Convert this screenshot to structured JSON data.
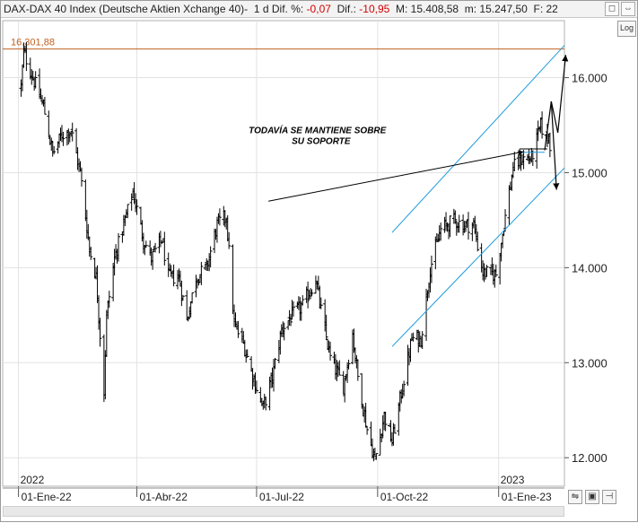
{
  "header": {
    "symbol": "DAX",
    "sep1": " - ",
    "name": "DAX 40 Index (Deutsche Aktien Xchange 40)",
    "sep2": " - ",
    "timeframe": "1 d",
    "dif_pct_label": "Dif. %:",
    "dif_pct_value": "-0,07",
    "dif_label": "Dif.:",
    "dif_value": "-10,95",
    "max_label": "M:",
    "max_value": "15.408,58",
    "min_label": "m:",
    "min_value": "15.247,50",
    "f_label": "F:",
    "f_value": "22",
    "controls": [
      "◻",
      "⇔"
    ]
  },
  "log_button": "Log",
  "bottom_controls": [
    "⇋",
    "▣",
    "⊣"
  ],
  "chart_data": {
    "type": "ohlc",
    "title": "",
    "colors": {
      "bars": "#000000",
      "resistance": "#c06020",
      "channel": "#1e9bdc",
      "annotation": "#000000",
      "grid": "#e2e2e2"
    },
    "y_axis": {
      "ticks": [
        "12.000",
        "13.000",
        "14.000",
        "15.000",
        "16.000"
      ],
      "range": [
        11700,
        16600
      ],
      "scale": "linear"
    },
    "x_axis": {
      "range": [
        "2021-12-20",
        "2023-02-20"
      ],
      "ticks": [
        {
          "date": "2022-01-01",
          "label": "01-Ene-22"
        },
        {
          "date": "2022-04-01",
          "label": "01-Abr-22"
        },
        {
          "date": "2022-07-01",
          "label": "01-Jul-22"
        },
        {
          "date": "2022-10-01",
          "label": "01-Oct-22"
        },
        {
          "date": "2023-01-01",
          "label": "01-Ene-23"
        }
      ],
      "year_labels": [
        {
          "date": "2022-01-01",
          "label": "2022"
        },
        {
          "date": "2023-01-01",
          "label": "2023"
        }
      ]
    },
    "resistance": {
      "value": 16301.88,
      "label": "16.301,88"
    },
    "annotation": {
      "lines": [
        "TODAVÍA SE MANTIENE SOBRE",
        "SU SOPORTE"
      ]
    },
    "channel": {
      "upper": [
        {
          "date": "2022-10-12",
          "value": 14370
        },
        {
          "date": "2023-02-20",
          "value": 16340
        }
      ],
      "lower": [
        {
          "date": "2022-10-12",
          "value": 13170
        },
        {
          "date": "2023-02-20",
          "value": 15050
        }
      ]
    },
    "support_lines": [
      {
        "from": "2023-01-17",
        "to": "2023-02-07",
        "value": 15250
      },
      {
        "from": "2023-01-15",
        "to": "2023-02-05",
        "value": 15215
      }
    ],
    "projection": [
      {
        "date": "2023-02-05",
        "value": 15235
      },
      {
        "date": "2023-02-10",
        "value": 15750
      },
      {
        "date": "2023-02-15",
        "value": 15420
      },
      {
        "date": "2023-02-21",
        "value": 16240
      }
    ],
    "projection_down": [
      {
        "date": "2023-02-10",
        "value": 15750
      },
      {
        "date": "2023-02-14",
        "value": 14820
      }
    ],
    "trend_points": [
      [
        "2022-01-03",
        15900
      ],
      [
        "2022-01-05",
        16270
      ],
      [
        "2022-01-12",
        16000
      ],
      [
        "2022-01-20",
        15700
      ],
      [
        "2022-01-27",
        15200
      ],
      [
        "2022-02-03",
        15400
      ],
      [
        "2022-02-10",
        15450
      ],
      [
        "2022-02-17",
        15000
      ],
      [
        "2022-02-24",
        14200
      ],
      [
        "2022-03-01",
        13900
      ],
      [
        "2022-03-07",
        12700
      ],
      [
        "2022-03-09",
        13500
      ],
      [
        "2022-03-15",
        14100
      ],
      [
        "2022-03-29",
        14800
      ],
      [
        "2022-04-06",
        14300
      ],
      [
        "2022-04-12",
        14100
      ],
      [
        "2022-04-20",
        14300
      ],
      [
        "2022-04-25",
        13900
      ],
      [
        "2022-05-03",
        13900
      ],
      [
        "2022-05-09",
        13450
      ],
      [
        "2022-05-16",
        13900
      ],
      [
        "2022-05-24",
        14000
      ],
      [
        "2022-06-01",
        14450
      ],
      [
        "2022-06-08",
        14550
      ],
      [
        "2022-06-14",
        13400
      ],
      [
        "2022-06-21",
        13200
      ],
      [
        "2022-06-30",
        12780
      ],
      [
        "2022-07-06",
        12520
      ],
      [
        "2022-07-13",
        12850
      ],
      [
        "2022-07-20",
        13350
      ],
      [
        "2022-07-28",
        13500
      ],
      [
        "2022-08-05",
        13600
      ],
      [
        "2022-08-15",
        13880
      ],
      [
        "2022-08-19",
        13550
      ],
      [
        "2022-08-26",
        13050
      ],
      [
        "2022-09-05",
        12750
      ],
      [
        "2022-09-12",
        13300
      ],
      [
        "2022-09-16",
        12850
      ],
      [
        "2022-09-23",
        12300
      ],
      [
        "2022-09-29",
        11970
      ],
      [
        "2022-10-06",
        12450
      ],
      [
        "2022-10-12",
        12170
      ],
      [
        "2022-10-20",
        12750
      ],
      [
        "2022-10-27",
        13250
      ],
      [
        "2022-11-03",
        13250
      ],
      [
        "2022-11-10",
        14000
      ],
      [
        "2022-11-18",
        14400
      ],
      [
        "2022-11-28",
        14500
      ],
      [
        "2022-12-05",
        14450
      ],
      [
        "2022-12-13",
        14450
      ],
      [
        "2022-12-20",
        13950
      ],
      [
        "2022-12-30",
        13930
      ],
      [
        "2023-01-05",
        14450
      ],
      [
        "2023-01-12",
        15050
      ],
      [
        "2023-01-19",
        15150
      ],
      [
        "2023-01-26",
        15150
      ],
      [
        "2023-02-02",
        15500
      ],
      [
        "2023-02-06",
        15350
      ],
      [
        "2023-02-08",
        15400
      ],
      [
        "2023-02-09",
        15300
      ]
    ]
  }
}
